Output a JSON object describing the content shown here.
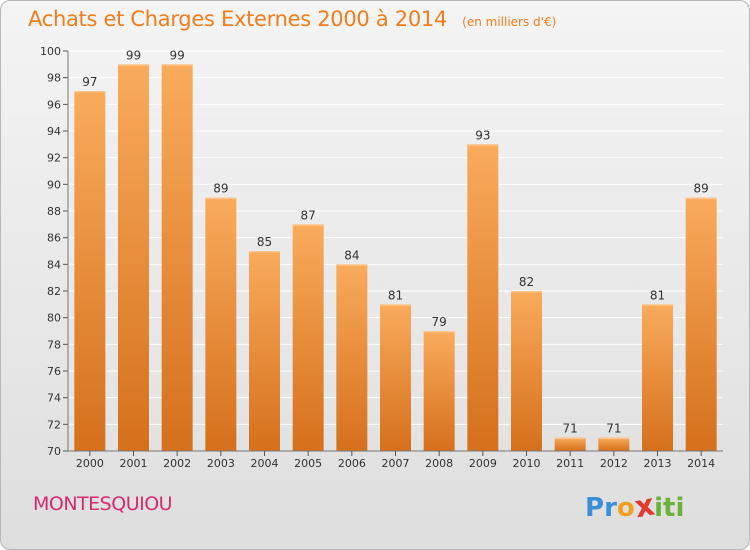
{
  "title": "Achats et Charges Externes 2000 à 2014",
  "subtitle": "(en milliers d'€)",
  "commune": "MONTESQUIOU",
  "logo_letters": [
    "P",
    "r",
    "o",
    "x",
    "i",
    "t",
    "i"
  ],
  "colors": {
    "title": "#f07d1a",
    "commune": "#d62a6f",
    "bar_light": "#f8a95a",
    "bar_dark": "#d8701c",
    "grid": "#ffffff",
    "axis_text": "#333333",
    "logo": [
      "#3b8fd6",
      "#3b8fd6",
      "#f0a020",
      "#e23b2e",
      "#6ab23a",
      "#6ab23a",
      "#6ab23a"
    ]
  },
  "chart_data": {
    "type": "bar",
    "title": "Achats et Charges Externes 2000 à 2014",
    "subtitle": "(en milliers d'€)",
    "categories": [
      "2000",
      "2001",
      "2002",
      "2003",
      "2004",
      "2005",
      "2006",
      "2007",
      "2008",
      "2009",
      "2010",
      "2011",
      "2012",
      "2013",
      "2014"
    ],
    "values": [
      97,
      99,
      99,
      89,
      85,
      87,
      84,
      81,
      79,
      93,
      82,
      71,
      71,
      81,
      89
    ],
    "ylim": [
      70,
      100
    ],
    "yticks": [
      70,
      72,
      74,
      76,
      78,
      80,
      82,
      84,
      86,
      88,
      90,
      92,
      94,
      96,
      98,
      100
    ],
    "grid": true,
    "xlabel": "",
    "ylabel": ""
  }
}
